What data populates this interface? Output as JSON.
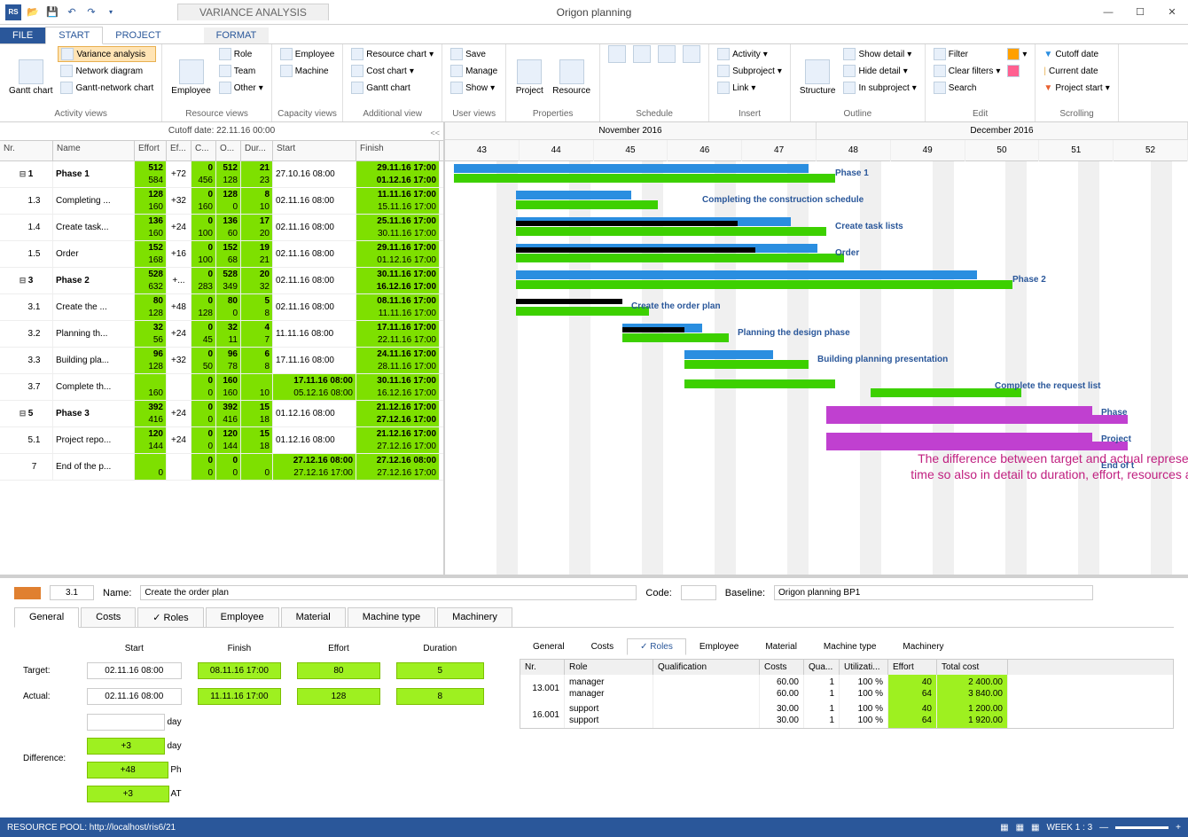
{
  "window": {
    "title": "Origon planning",
    "tool_title": "VARIANCE ANALYSIS",
    "cutoff": "Cutoff date: 22.11.16 00:00"
  },
  "ribbon_tabs": {
    "file": "FILE",
    "start": "START",
    "project": "PROJECT",
    "format": "FORMAT"
  },
  "ribbon": {
    "activity_views": {
      "label": "Activity views",
      "gantt_chart": "Gantt chart",
      "variance": "Variance analysis",
      "network": "Network diagram",
      "gantt_net": "Gantt-network chart"
    },
    "resource_views": {
      "label": "Resource views",
      "employee": "Employee",
      "role": "Role",
      "team": "Team",
      "other": "Other"
    },
    "capacity_views": {
      "label": "Capacity views",
      "employee": "Employee",
      "machine": "Machine"
    },
    "additional_view": {
      "label": "Additional view",
      "resource_chart": "Resource chart",
      "cost_chart": "Cost chart",
      "gantt_chart": "Gantt chart"
    },
    "user_views": {
      "label": "User views",
      "save": "Save",
      "manage": "Manage",
      "show": "Show"
    },
    "properties": {
      "label": "Properties",
      "project": "Project",
      "resource": "Resource"
    },
    "schedule": {
      "label": "Schedule"
    },
    "insert": {
      "label": "Insert",
      "activity": "Activity",
      "subproject": "Subproject",
      "link": "Link"
    },
    "outline": {
      "label": "Outline",
      "structure": "Structure",
      "show_detail": "Show detail",
      "hide_detail": "Hide detail",
      "in_subproject": "In subproject"
    },
    "edit": {
      "label": "Edit",
      "filter": "Filter",
      "clear_filters": "Clear filters",
      "search": "Search"
    },
    "scrolling": {
      "label": "Scrolling",
      "cutoff": "Cutoff date",
      "current": "Current date",
      "project_start": "Project start"
    }
  },
  "grid_headers": {
    "nr": "Nr.",
    "name": "Name",
    "effort": "Effort",
    "effd": "Ef...",
    "c": "C...",
    "o": "O...",
    "dur": "Dur...",
    "start": "Start",
    "finish": "Finish"
  },
  "tasks": [
    {
      "nr": "1",
      "name": "Phase 1",
      "bold": true,
      "exp": "⊟",
      "eff": [
        "512",
        "584"
      ],
      "effd": "+72",
      "c": [
        "0",
        "456"
      ],
      "o": [
        "512",
        "128"
      ],
      "dur": [
        "21",
        "23"
      ],
      "start": "27.10.16 08:00",
      "finish": [
        "29.11.16 17:00",
        "01.12.16 17:00"
      ],
      "finish_bold": true
    },
    {
      "nr": "1.3",
      "name": "Completing ...",
      "eff": [
        "128",
        "160"
      ],
      "effd": "+32",
      "c": [
        "0",
        "160"
      ],
      "o": [
        "128",
        "0"
      ],
      "dur": [
        "8",
        "10"
      ],
      "start": "02.11.16 08:00",
      "finish": [
        "11.11.16 17:00",
        "15.11.16 17:00"
      ]
    },
    {
      "nr": "1.4",
      "name": "Create task...",
      "eff": [
        "136",
        "160"
      ],
      "effd": "+24",
      "c": [
        "0",
        "100"
      ],
      "o": [
        "136",
        "60"
      ],
      "dur": [
        "17",
        "20"
      ],
      "start": "02.11.16 08:00",
      "finish": [
        "25.11.16 17:00",
        "30.11.16 17:00"
      ]
    },
    {
      "nr": "1.5",
      "name": "Order",
      "eff": [
        "152",
        "168"
      ],
      "effd": "+16",
      "c": [
        "0",
        "100"
      ],
      "o": [
        "152",
        "68"
      ],
      "dur": [
        "19",
        "21"
      ],
      "start": "02.11.16 08:00",
      "finish": [
        "29.11.16 17:00",
        "01.12.16 17:00"
      ]
    },
    {
      "nr": "3",
      "name": "Phase 2",
      "bold": true,
      "exp": "⊟",
      "eff": [
        "528",
        "632"
      ],
      "effd": "+...",
      "c": [
        "0",
        "283"
      ],
      "o": [
        "528",
        "349"
      ],
      "dur": [
        "20",
        "32"
      ],
      "start": "02.11.16 08:00",
      "finish": [
        "30.11.16 17:00",
        "16.12.16 17:00"
      ],
      "finish_bold": true
    },
    {
      "nr": "3.1",
      "name": "Create the ...",
      "eff": [
        "80",
        "128"
      ],
      "effd": "+48",
      "c": [
        "0",
        "128"
      ],
      "o": [
        "80",
        "0"
      ],
      "dur": [
        "5",
        "8"
      ],
      "start": "02.11.16 08:00",
      "finish": [
        "08.11.16 17:00",
        "11.11.16 17:00"
      ]
    },
    {
      "nr": "3.2",
      "name": "Planning th...",
      "eff": [
        "32",
        "56"
      ],
      "effd": "+24",
      "c": [
        "0",
        "45"
      ],
      "o": [
        "32",
        "11"
      ],
      "dur": [
        "4",
        "7"
      ],
      "start": "11.11.16 08:00",
      "finish": [
        "17.11.16 17:00",
        "22.11.16 17:00"
      ]
    },
    {
      "nr": "3.3",
      "name": "Building pla...",
      "eff": [
        "96",
        "128"
      ],
      "effd": "+32",
      "c": [
        "0",
        "50"
      ],
      "o": [
        "96",
        "78"
      ],
      "dur": [
        "6",
        "8"
      ],
      "start": "17.11.16 08:00",
      "finish": [
        "24.11.16 17:00",
        "28.11.16 17:00"
      ]
    },
    {
      "nr": "3.7",
      "name": "Complete th...",
      "eff": [
        "",
        "160"
      ],
      "effd": "",
      "c": [
        "0",
        "0"
      ],
      "o": [
        "160",
        "160"
      ],
      "dur": [
        "",
        "10"
      ],
      "start": [
        "17.11.16 08:00",
        "05.12.16 08:00"
      ],
      "finish": [
        "30.11.16 17:00",
        "16.12.16 17:00"
      ],
      "start_green": true
    },
    {
      "nr": "5",
      "name": "Phase 3",
      "bold": true,
      "exp": "⊟",
      "eff": [
        "392",
        "416"
      ],
      "effd": "+24",
      "c": [
        "0",
        "0"
      ],
      "o": [
        "392",
        "416"
      ],
      "dur": [
        "15",
        "18"
      ],
      "start": "01.12.16 08:00",
      "finish": [
        "21.12.16 17:00",
        "27.12.16 17:00"
      ],
      "finish_bold": true
    },
    {
      "nr": "5.1",
      "name": "Project repo...",
      "eff": [
        "120",
        "144"
      ],
      "effd": "+24",
      "c": [
        "0",
        "0"
      ],
      "o": [
        "120",
        "144"
      ],
      "dur": [
        "15",
        "18"
      ],
      "start": "01.12.16 08:00",
      "finish": [
        "21.12.16 17:00",
        "27.12.16 17:00"
      ]
    },
    {
      "nr": "7",
      "name": "End of the p...",
      "eff": [
        "",
        "0"
      ],
      "effd": "",
      "c": [
        "0",
        "0"
      ],
      "o": [
        "0",
        "0"
      ],
      "dur": [
        "",
        "0"
      ],
      "start": [
        "27.12.16 08:00",
        "27.12.16 17:00"
      ],
      "finish": [
        "27.12.16 08:00",
        "27.12.16 17:00"
      ],
      "start_green": true
    }
  ],
  "timeline": {
    "months": [
      "November 2016",
      "December 2016"
    ],
    "weeks": [
      "43",
      "44",
      "45",
      "46",
      "47",
      "48",
      "49",
      "50",
      "51",
      "52"
    ]
  },
  "gantt_labels": [
    "Phase 1",
    "Completing the construction schedule",
    "Create task lists",
    "Order",
    "Phase 2",
    "Create the order plan",
    "Planning the design phase",
    "Building planning presentation",
    "Complete the request list",
    "Phase",
    "Project",
    "End of t"
  ],
  "annotation": "The difference between target and actual represents how time so also in detail to duration, effort, resources and costs",
  "bottom": {
    "nr": "3.1",
    "name_label": "Name:",
    "name_value": "Create the order plan",
    "code_label": "Code:",
    "baseline_label": "Baseline:",
    "baseline_value": "Origon planning BP1",
    "tabs": [
      "General",
      "Costs",
      "Roles",
      "Employee",
      "Material",
      "Machine type",
      "Machinery"
    ],
    "detail": {
      "cols": [
        "Start",
        "Finish",
        "Effort",
        "Duration"
      ],
      "target": "Target:",
      "actual": "Actual:",
      "difference": "Difference:",
      "target_vals": [
        "02.11.16 08:00",
        "08.11.16 17:00",
        "80",
        "5"
      ],
      "actual_vals": [
        "02.11.16 08:00",
        "11.11.16 17:00",
        "128",
        "8"
      ],
      "diff_vals": [
        "",
        "+3",
        "+48",
        "+3"
      ],
      "diff_units": [
        "day",
        "day",
        "Ph",
        "AT"
      ]
    },
    "roles": {
      "headers": [
        "Nr.",
        "Role",
        "Qualification",
        "Costs",
        "Qua...",
        "Utilizati...",
        "Effort",
        "Total cost"
      ],
      "rows": [
        {
          "nr": "13.001",
          "role": [
            "manager",
            "manager"
          ],
          "costs": [
            "60.00",
            "60.00"
          ],
          "qua": [
            "1",
            "1"
          ],
          "util": [
            "100 %",
            "100 %"
          ],
          "effort": [
            "40",
            "64"
          ],
          "total": [
            "2 400.00",
            "3 840.00"
          ]
        },
        {
          "nr": "16.001",
          "role": [
            "support",
            "support"
          ],
          "costs": [
            "30.00",
            "30.00"
          ],
          "qua": [
            "1",
            "1"
          ],
          "util": [
            "100 %",
            "100 %"
          ],
          "effort": [
            "40",
            "64"
          ],
          "total": [
            "1 200.00",
            "1 920.00"
          ]
        }
      ]
    }
  },
  "statusbar": {
    "pool": "RESOURCE POOL: http://localhost/ris6/21",
    "week": "WEEK 1 : 3"
  }
}
